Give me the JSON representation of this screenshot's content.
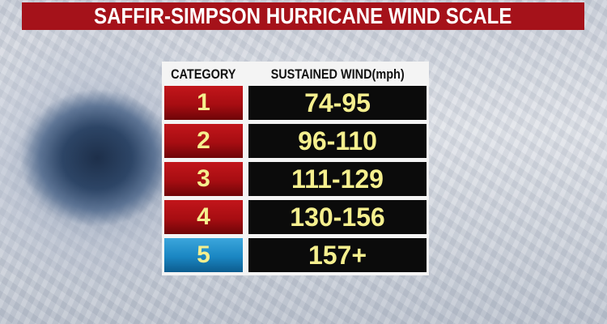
{
  "title": "SAFFIR-SIMPSON HURRICANE WIND SCALE",
  "table": {
    "headers": [
      "CATEGORY",
      "SUSTAINED WIND(mph)"
    ],
    "rows": [
      {
        "category": "1",
        "wind": "74-95",
        "color": "#b01016"
      },
      {
        "category": "2",
        "wind": "96-110",
        "color": "#b01016"
      },
      {
        "category": "3",
        "wind": "111-129",
        "color": "#b01016"
      },
      {
        "category": "4",
        "wind": "130-156",
        "color": "#b01016"
      },
      {
        "category": "5",
        "wind": "157+",
        "color": "#1a86c2"
      }
    ]
  },
  "colors": {
    "banner": "#a5121a",
    "value_text": "#f5ef8e",
    "value_bg": "#0b0b0b"
  }
}
